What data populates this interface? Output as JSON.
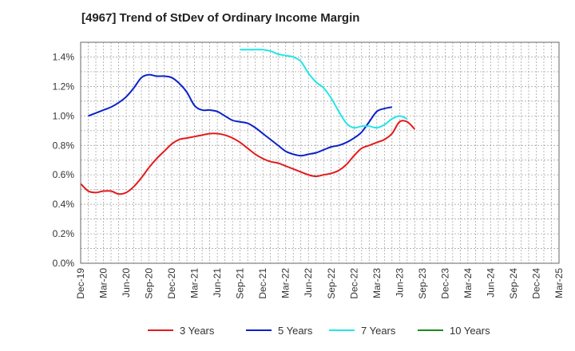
{
  "chart_data": {
    "type": "line",
    "title": "[4967]  Trend of StDev of Ordinary Income Margin",
    "xlabel": "",
    "ylabel": "",
    "x_ticks": [
      "Dec-19",
      "Mar-20",
      "Jun-20",
      "Sep-20",
      "Dec-20",
      "Mar-21",
      "Jun-21",
      "Sep-21",
      "Dec-21",
      "Mar-22",
      "Jun-22",
      "Sep-22",
      "Dec-22",
      "Mar-23",
      "Jun-23",
      "Sep-23",
      "Dec-23",
      "Mar-24",
      "Jun-24",
      "Sep-24",
      "Dec-24",
      "Mar-25"
    ],
    "y_ticks": [
      "0.0%",
      "0.2%",
      "0.4%",
      "0.6%",
      "0.8%",
      "1.0%",
      "1.2%",
      "1.4%"
    ],
    "ylim": [
      0,
      1.5
    ],
    "grid": true,
    "legend_position": "bottom",
    "series": [
      {
        "name": "3 Years",
        "color": "#e31a1c",
        "start_index": 0,
        "values": [
          0.54,
          0.49,
          0.48,
          0.49,
          0.49,
          0.47,
          0.48,
          0.52,
          0.58,
          0.65,
          0.71,
          0.76,
          0.81,
          0.84,
          0.85,
          0.86,
          0.87,
          0.88,
          0.88,
          0.87,
          0.85,
          0.82,
          0.78,
          0.74,
          0.71,
          0.69,
          0.68,
          0.66,
          0.64,
          0.62,
          0.6,
          0.59,
          0.6,
          0.61,
          0.63,
          0.67,
          0.73,
          0.78,
          0.8,
          0.82,
          0.84,
          0.88,
          0.96,
          0.96,
          0.91
        ]
      },
      {
        "name": "5 Years",
        "color": "#0a22c8",
        "start_index": 1,
        "values": [
          1.0,
          1.02,
          1.04,
          1.06,
          1.09,
          1.13,
          1.19,
          1.26,
          1.28,
          1.27,
          1.27,
          1.26,
          1.22,
          1.16,
          1.07,
          1.04,
          1.04,
          1.03,
          1.0,
          0.97,
          0.96,
          0.95,
          0.92,
          0.88,
          0.84,
          0.8,
          0.76,
          0.74,
          0.73,
          0.74,
          0.75,
          0.77,
          0.79,
          0.8,
          0.82,
          0.85,
          0.89,
          0.96,
          1.03,
          1.05,
          1.06
        ]
      },
      {
        "name": "7 Years",
        "color": "#22e6e6",
        "start_index": 21,
        "values": [
          1.45,
          1.45,
          1.45,
          1.45,
          1.44,
          1.42,
          1.41,
          1.4,
          1.37,
          1.29,
          1.23,
          1.19,
          1.12,
          1.03,
          0.95,
          0.92,
          0.93,
          0.93,
          0.92,
          0.94,
          0.98,
          1.0,
          0.98
        ]
      },
      {
        "name": "10 Years",
        "color": "#1a8a1a",
        "start_index": 0,
        "values": []
      }
    ]
  }
}
